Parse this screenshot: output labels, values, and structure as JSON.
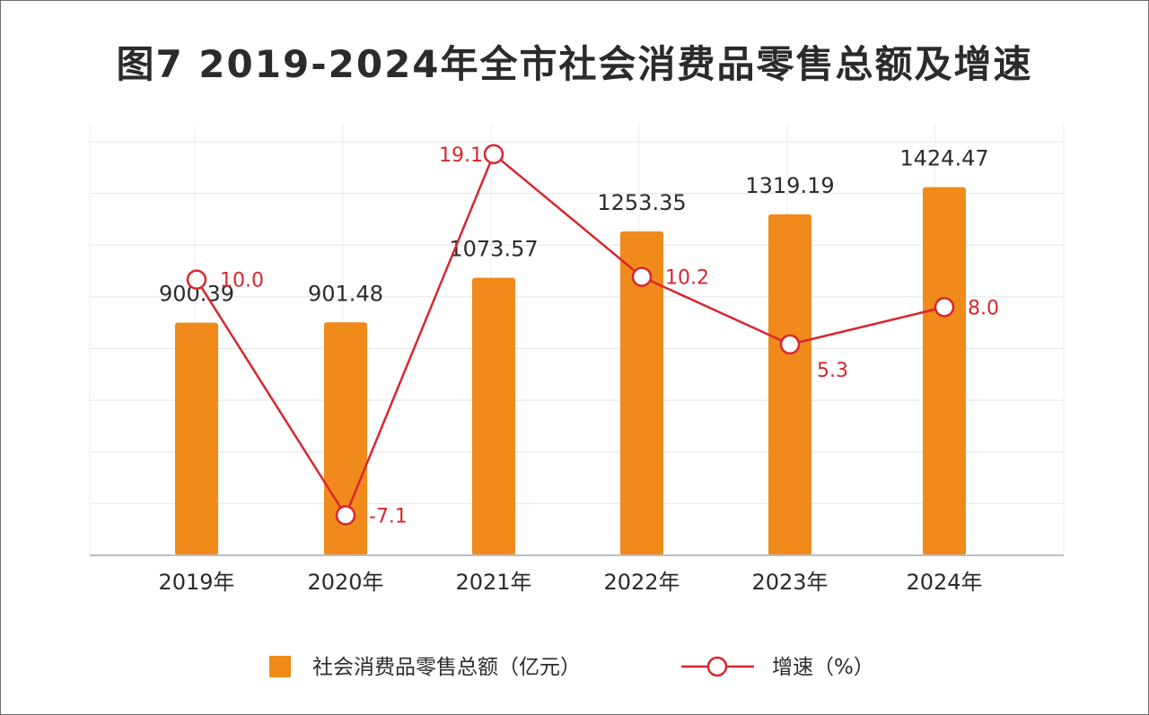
{
  "chart_data": {
    "type": "bar+line",
    "title": "图7  2019-2024年全市社会消费品零售总额及增速",
    "categories": [
      "2019年",
      "2020年",
      "2021年",
      "2022年",
      "2023年",
      "2024年"
    ],
    "series": [
      {
        "name": "社会消费品零售总额（亿元）",
        "type": "bar",
        "axis": "left",
        "values": [
          900.39,
          901.48,
          1073.57,
          1253.35,
          1319.19,
          1424.47
        ],
        "labels": [
          "900.39",
          "901.48",
          "1073.57",
          "1253.35",
          "1319.19",
          "1424.47"
        ],
        "color": "#ef8a1b"
      },
      {
        "name": "增速（%）",
        "type": "line",
        "axis": "right",
        "values": [
          10.0,
          -7.1,
          19.1,
          10.2,
          5.3,
          8.0
        ],
        "labels": [
          "10.0",
          "-7.1",
          "19.1",
          "10.2",
          "5.3",
          "8.0"
        ],
        "color": "#d8262f"
      }
    ],
    "ylim_left": [
      0,
      1600
    ],
    "ylim_right": [
      -10,
      20
    ],
    "grid": true,
    "legend_position": "bottom"
  }
}
